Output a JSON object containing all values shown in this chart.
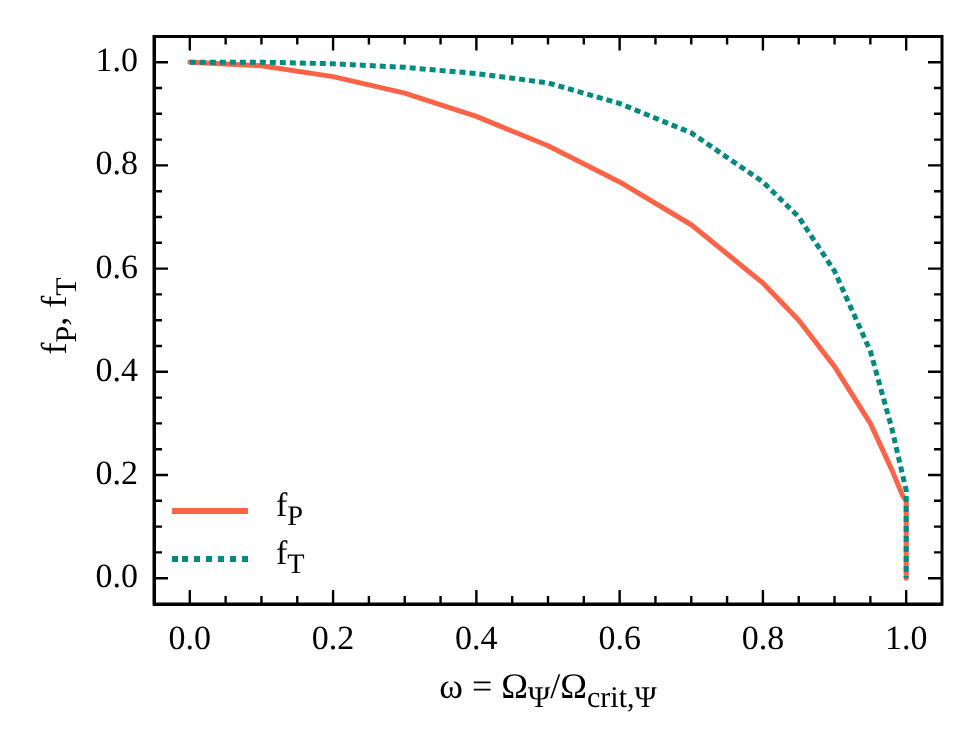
{
  "chart_data": {
    "type": "line",
    "xlabel": "ω = Ω$_{Ψ}$/Ω$_{crit,Ψ}$",
    "ylabel": "f$_{P}$,  f$_{T}$",
    "xlim": [
      -0.05,
      1.05
    ],
    "ylim": [
      -0.05,
      1.05
    ],
    "xticks": [
      {
        "value": 0,
        "label": "0.0"
      },
      {
        "value": 0.05,
        "label": null
      },
      {
        "value": 0.1,
        "label": null
      },
      {
        "value": 0.15,
        "label": null
      },
      {
        "value": 0.2,
        "label": "0.2"
      },
      {
        "value": 0.25,
        "label": null
      },
      {
        "value": 0.3,
        "label": null
      },
      {
        "value": 0.35,
        "label": null
      },
      {
        "value": 0.4,
        "label": "0.4"
      },
      {
        "value": 0.45,
        "label": null
      },
      {
        "value": 0.5,
        "label": null
      },
      {
        "value": 0.55,
        "label": null
      },
      {
        "value": 0.6,
        "label": "0.6"
      },
      {
        "value": 0.65,
        "label": null
      },
      {
        "value": 0.7,
        "label": null
      },
      {
        "value": 0.75,
        "label": null
      },
      {
        "value": 0.8,
        "label": "0.8"
      },
      {
        "value": 0.85,
        "label": null
      },
      {
        "value": 0.9,
        "label": null
      },
      {
        "value": 0.95,
        "label": null
      },
      {
        "value": 1,
        "label": "1.0"
      }
    ],
    "yticks": [
      {
        "value": 0,
        "label": "0.0"
      },
      {
        "value": 0.05,
        "label": null
      },
      {
        "value": 0.1,
        "label": null
      },
      {
        "value": 0.15,
        "label": null
      },
      {
        "value": 0.2,
        "label": "0.2"
      },
      {
        "value": 0.25,
        "label": null
      },
      {
        "value": 0.3,
        "label": null
      },
      {
        "value": 0.35,
        "label": null
      },
      {
        "value": 0.4,
        "label": "0.4"
      },
      {
        "value": 0.45,
        "label": null
      },
      {
        "value": 0.5,
        "label": null
      },
      {
        "value": 0.55,
        "label": null
      },
      {
        "value": 0.6,
        "label": "0.6"
      },
      {
        "value": 0.65,
        "label": null
      },
      {
        "value": 0.7,
        "label": null
      },
      {
        "value": 0.75,
        "label": null
      },
      {
        "value": 0.8,
        "label": "0.8"
      },
      {
        "value": 0.85,
        "label": null
      },
      {
        "value": 0.9,
        "label": null
      },
      {
        "value": 0.95,
        "label": null
      },
      {
        "value": 1,
        "label": "1.0"
      }
    ],
    "legend": "bottom left",
    "series": [
      {
        "name": "f$_{P}$",
        "color": "#ff6347",
        "line_style": "solid",
        "x": [
          0,
          0.1,
          0.2,
          0.3,
          0.4,
          0.5,
          0.6,
          0.7,
          0.8,
          0.85,
          0.9,
          0.95,
          0.98,
          0.995,
          1,
          1
        ],
        "values": [
          1,
          0.993,
          0.972,
          0.94,
          0.895,
          0.838,
          0.768,
          0.685,
          0.572,
          0.5,
          0.41,
          0.3,
          0.21,
          0.16,
          0.15,
          0
        ]
      },
      {
        "name": "f$_{T}$",
        "color": "#008b80",
        "line_style": "dotted",
        "x": [
          0,
          0.1,
          0.2,
          0.3,
          0.4,
          0.5,
          0.6,
          0.7,
          0.8,
          0.85,
          0.9,
          0.95,
          0.98,
          0.995,
          1,
          1
        ],
        "values": [
          1,
          1,
          0.997,
          0.99,
          0.978,
          0.96,
          0.92,
          0.863,
          0.768,
          0.7,
          0.595,
          0.44,
          0.29,
          0.2,
          0.17,
          0
        ]
      }
    ]
  }
}
